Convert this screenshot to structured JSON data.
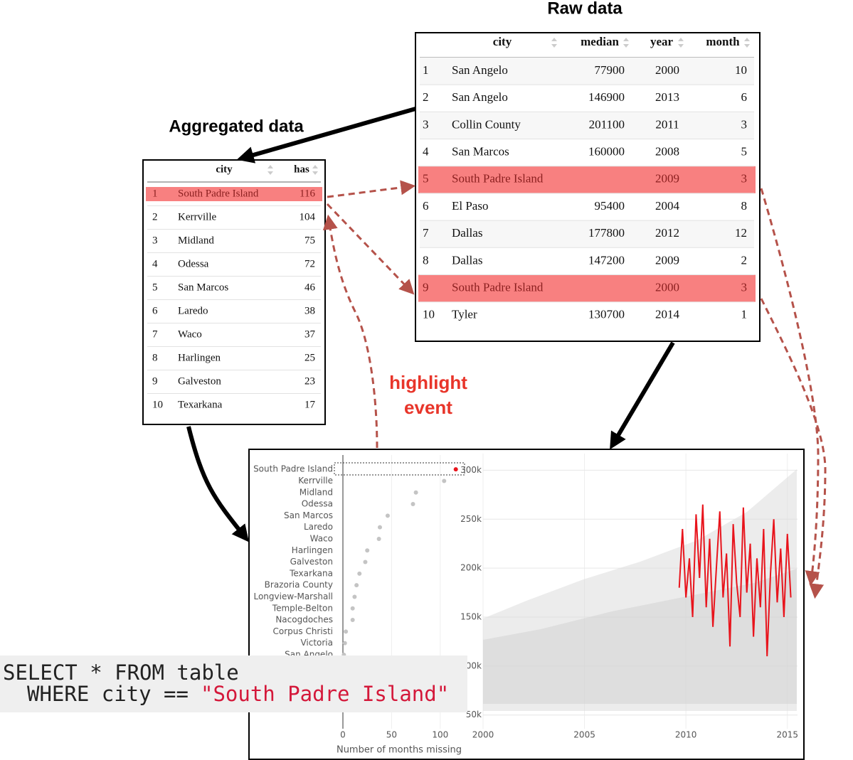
{
  "raw_table": {
    "title": "Raw data",
    "columns": [
      "city",
      "median",
      "year",
      "month"
    ],
    "rows": [
      {
        "cells": [
          1,
          "San Angelo",
          77900,
          2000,
          10
        ]
      },
      {
        "cells": [
          2,
          "San Angelo",
          146900,
          2013,
          6
        ]
      },
      {
        "cells": [
          3,
          "Collin County",
          201100,
          2011,
          3
        ]
      },
      {
        "cells": [
          4,
          "San Marcos",
          160000,
          2008,
          5
        ]
      },
      {
        "cells": [
          5,
          "South Padre Island",
          null,
          2009,
          3
        ],
        "highlighted": true
      },
      {
        "cells": [
          6,
          "El Paso",
          95400,
          2004,
          8
        ]
      },
      {
        "cells": [
          7,
          "Dallas",
          177800,
          2012,
          12
        ]
      },
      {
        "cells": [
          8,
          "Dallas",
          147200,
          2009,
          2
        ]
      },
      {
        "cells": [
          9,
          "South Padre Island",
          null,
          2000,
          3
        ],
        "highlighted": true
      },
      {
        "cells": [
          10,
          "Tyler",
          130700,
          2014,
          1
        ]
      }
    ]
  },
  "aggregated_table": {
    "title": "Aggregated data",
    "columns": [
      "city",
      "has"
    ],
    "rows": [
      {
        "cells": [
          1,
          "South Padre Island",
          116
        ],
        "highlighted": true
      },
      {
        "cells": [
          2,
          "Kerrville",
          104
        ]
      },
      {
        "cells": [
          3,
          "Midland",
          75
        ]
      },
      {
        "cells": [
          4,
          "Odessa",
          72
        ]
      },
      {
        "cells": [
          5,
          "San Marcos",
          46
        ]
      },
      {
        "cells": [
          6,
          "Laredo",
          38
        ]
      },
      {
        "cells": [
          7,
          "Waco",
          37
        ]
      },
      {
        "cells": [
          8,
          "Harlingen",
          25
        ]
      },
      {
        "cells": [
          9,
          "Galveston",
          23
        ]
      },
      {
        "cells": [
          10,
          "Texarkana",
          17
        ]
      }
    ]
  },
  "annotation": [
    "highlight",
    "event"
  ],
  "dot_plot": {
    "type": "scatter",
    "categories": [
      "South Padre Island",
      "Kerrville",
      "Midland",
      "Odessa",
      "San Marcos",
      "Laredo",
      "Waco",
      "Harlingen",
      "Galveston",
      "Texarkana",
      "Brazoria County",
      "Longview-Marshall",
      "Temple-Belton",
      "Nacogdoches",
      "Corpus Christi",
      "Victoria",
      "San Angelo"
    ],
    "values": [
      116,
      104,
      75,
      72,
      46,
      38,
      37,
      25,
      23,
      17,
      14,
      12,
      10,
      10,
      3,
      2,
      1
    ],
    "colors": [
      "#e8141c",
      "#c4c4c4",
      "#c4c4c4",
      "#c4c4c4",
      "#c4c4c4",
      "#c4c4c4",
      "#c4c4c4",
      "#c4c4c4",
      "#c4c4c4",
      "#c4c4c4",
      "#c4c4c4",
      "#c4c4c4",
      "#c4c4c4",
      "#c4c4c4",
      "#c4c4c4",
      "#c4c4c4",
      "#c4c4c4"
    ],
    "xlim": [
      0,
      125
    ],
    "xticks": [
      0,
      50,
      100
    ],
    "xlabel": "Number of months missing"
  },
  "line_chart": {
    "type": "line",
    "xlim": [
      2000,
      2015.5
    ],
    "xticks": [
      2000,
      2005,
      2010,
      2015
    ],
    "ylim": [
      36000,
      317000
    ],
    "yticks": [
      {
        "value": 50000,
        "label": "50k"
      },
      {
        "value": 100000,
        "label": "100k"
      },
      {
        "value": 150000,
        "label": "150k"
      },
      {
        "value": 200000,
        "label": "200k"
      },
      {
        "value": 250000,
        "label": "250k"
      },
      {
        "value": 300000,
        "label": "300k"
      }
    ],
    "grid": true,
    "series": [
      {
        "color": "#e8141c",
        "x": [
          2009.67,
          2009.83,
          2010,
          2010.17,
          2010.33,
          2010.5,
          2010.67,
          2010.83,
          2011,
          2011.17,
          2011.33,
          2011.5,
          2011.67,
          2011.83,
          2012,
          2012.17,
          2012.33,
          2012.5,
          2012.67,
          2012.83,
          2013,
          2013.17,
          2013.33,
          2013.5,
          2013.67,
          2013.83,
          2014,
          2014.17,
          2014.33,
          2014.5,
          2014.67,
          2014.83,
          2015,
          2015.17
        ],
        "values": [
          180000,
          240000,
          170000,
          210000,
          150000,
          255000,
          190000,
          265000,
          160000,
          230000,
          140000,
          200000,
          258000,
          170000,
          215000,
          120000,
          245000,
          185000,
          150000,
          262000,
          175000,
          225000,
          130000,
          210000,
          160000,
          240000,
          110000,
          195000,
          250000,
          165000,
          220000,
          150000,
          235000,
          170000
        ]
      }
    ]
  },
  "sql": {
    "select": "SELECT * FROM table",
    "where": "WHERE city ==",
    "value": "\"South Padre Island\""
  }
}
